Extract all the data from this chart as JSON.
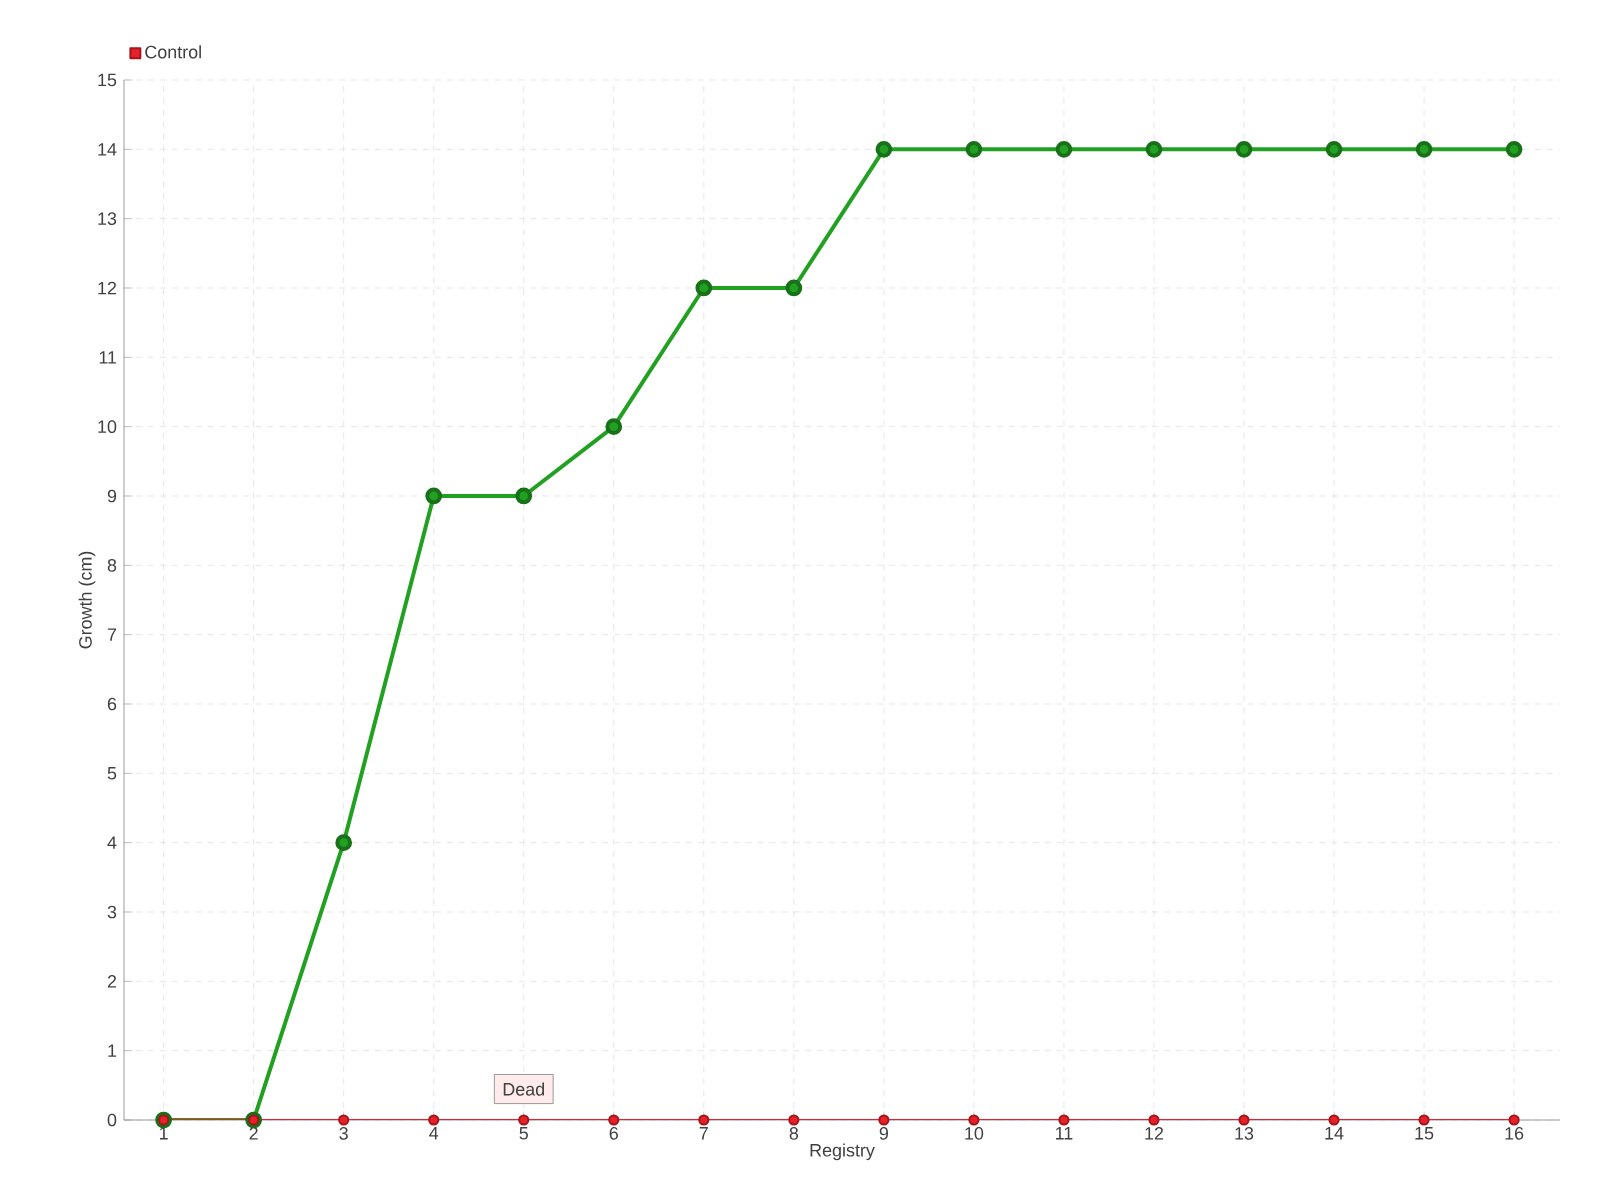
{
  "chart_data": {
    "type": "line",
    "xlabel": "Registry",
    "ylabel": "Growth (cm)",
    "categories": [
      "1",
      "2",
      "3",
      "4",
      "5",
      "6",
      "7",
      "8",
      "9",
      "10",
      "11",
      "12",
      "13",
      "14",
      "15",
      "16"
    ],
    "series": [
      {
        "color": "#22a022",
        "values": [
          0,
          0,
          4,
          9,
          9,
          10,
          12,
          12,
          14,
          14,
          14,
          14,
          14,
          14,
          14,
          14
        ]
      },
      {
        "name": "Control",
        "color": "#e8202a",
        "values": [
          0,
          0,
          0,
          0,
          0,
          0,
          0,
          0,
          0,
          0,
          0,
          0,
          0,
          0,
          0,
          0
        ]
      }
    ],
    "ylim": [
      0,
      15
    ],
    "yticks": [
      0,
      1,
      2,
      3,
      4,
      5,
      6,
      7,
      8,
      9,
      10,
      11,
      12,
      13,
      14,
      15
    ],
    "annotations": [
      {
        "text": "Dead",
        "x": "5",
        "y": 0
      }
    ],
    "grid": true,
    "legend": "top left",
    "marker": "circle",
    "line_style": "solid"
  }
}
